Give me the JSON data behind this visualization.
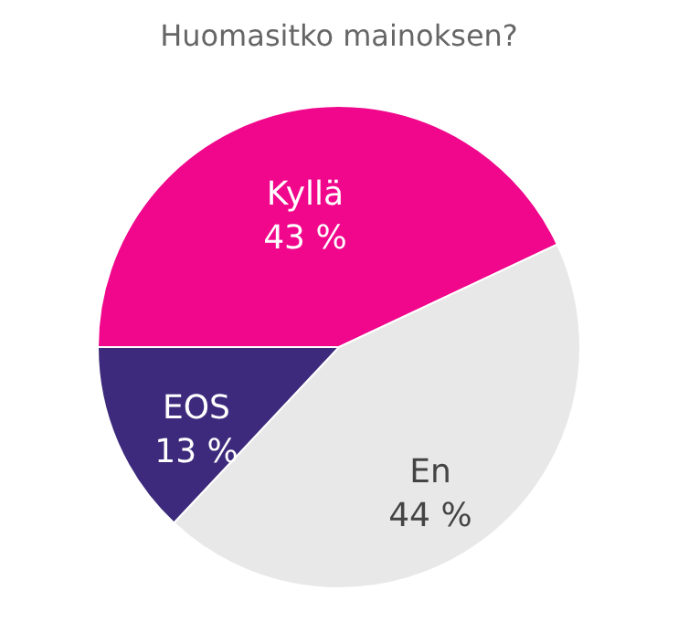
{
  "chart_data": {
    "type": "pie",
    "title": "Huomasitko mainoksen?",
    "categories": [
      "Kyllä",
      "En",
      "EOS"
    ],
    "values": [
      43,
      44,
      13
    ],
    "value_labels": [
      "43 %",
      "44 %",
      "13 %"
    ],
    "colors": [
      "#f0078c",
      "#e8e8e8",
      "#3d2a7c"
    ]
  }
}
